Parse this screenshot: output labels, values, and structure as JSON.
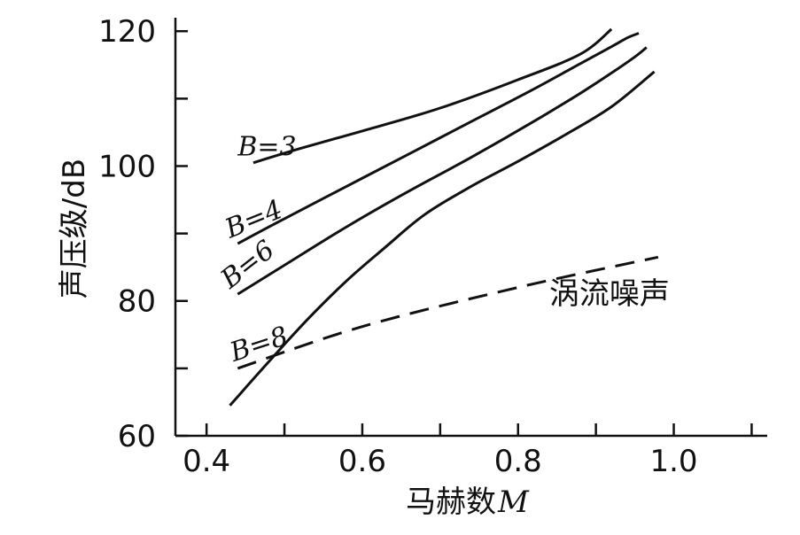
{
  "chart_data": {
    "type": "line",
    "title": "",
    "xlabel": "马赫数",
    "xlabel_symbol": "M",
    "ylabel": "声压级/dB",
    "xlim": [
      0.36,
      1.12
    ],
    "ylim": [
      60,
      122
    ],
    "x_ticks": [
      0.4,
      0.6,
      0.8,
      1.0
    ],
    "x_tick_labels": [
      "0.4",
      "0.6",
      "0.8",
      "1.0"
    ],
    "x_minor_ticks": [
      0.5,
      0.7,
      0.9,
      1.1
    ],
    "y_ticks": [
      60,
      80,
      100,
      120
    ],
    "y_tick_labels": [
      "60",
      "80",
      "100",
      "120"
    ],
    "y_minor_ticks": [
      70,
      90,
      110
    ],
    "grid": false,
    "series": [
      {
        "name": "B=3",
        "style": "solid",
        "x": [
          0.46,
          0.52,
          0.6,
          0.7,
          0.8,
          0.88,
          0.92
        ],
        "y": [
          100.5,
          102.6,
          105.2,
          108.6,
          112.8,
          116.6,
          120.3
        ]
      },
      {
        "name": "B=4",
        "style": "solid",
        "x": [
          0.44,
          0.5,
          0.58,
          0.66,
          0.74,
          0.82,
          0.88,
          0.92,
          0.94,
          0.955
        ],
        "y": [
          88.5,
          92.2,
          97.0,
          101.8,
          106.6,
          111.4,
          115.2,
          117.7,
          119.0,
          119.7
        ]
      },
      {
        "name": "B=6",
        "style": "solid",
        "x": [
          0.44,
          0.5,
          0.58,
          0.66,
          0.74,
          0.82,
          0.88,
          0.92,
          0.95,
          0.965
        ],
        "y": [
          81.0,
          85.3,
          91.0,
          96.3,
          101.3,
          106.6,
          110.8,
          113.8,
          116.2,
          117.6
        ]
      },
      {
        "name": "B=8",
        "style": "solid",
        "x": [
          0.43,
          0.48,
          0.53,
          0.58,
          0.63,
          0.68,
          0.74,
          0.8,
          0.86,
          0.92,
          0.975
        ],
        "y": [
          64.5,
          71.0,
          77.3,
          83.0,
          88.0,
          92.8,
          97.0,
          100.7,
          104.6,
          108.8,
          114.0
        ]
      },
      {
        "name": "涡流噪声",
        "style": "dashed",
        "x": [
          0.44,
          0.6,
          0.8,
          0.98
        ],
        "y": [
          70.0,
          76.2,
          82.0,
          86.5
        ]
      }
    ]
  }
}
